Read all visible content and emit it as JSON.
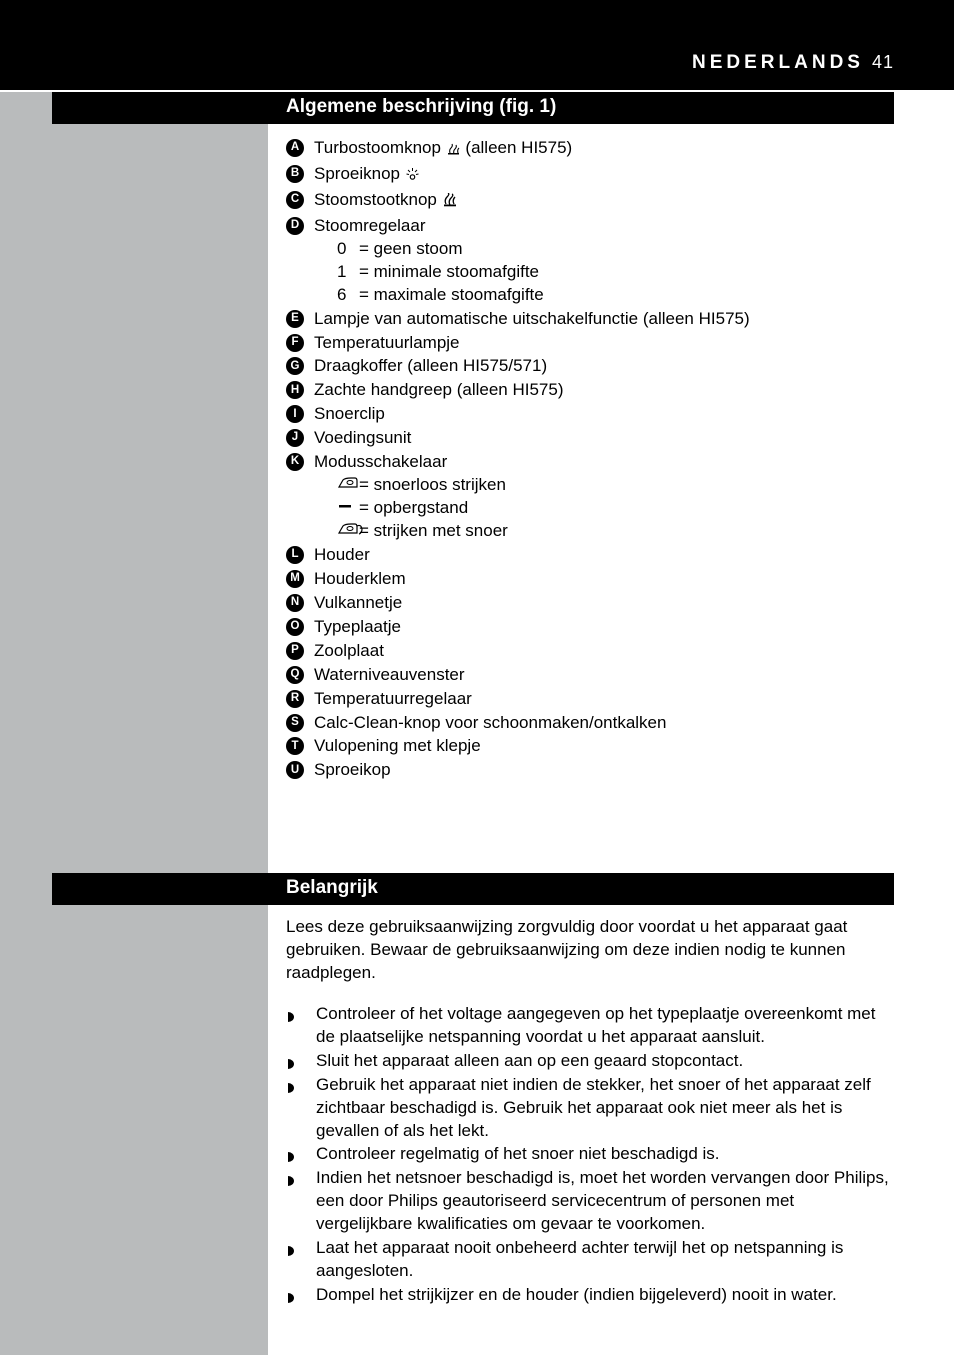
{
  "header": {
    "language": "NEDERLANDS",
    "page_number": "41"
  },
  "sections": {
    "s1_title": "Algemene beschrijving (fig. 1)",
    "s2_title": "Belangrijk"
  },
  "definitions": {
    "A": {
      "label": "Turbostoomknop",
      "suffix": "(alleen HI575)",
      "icon": "steam-small"
    },
    "B": {
      "label": "Sproeiknop",
      "icon": "spray"
    },
    "C": {
      "label": "Stoomstootknop",
      "icon": "steam-big"
    },
    "D": {
      "label": "Stoomregelaar",
      "subs": [
        {
          "k": "0",
          "t": "= geen stoom"
        },
        {
          "k": "1",
          "t": "= minimale stoomafgifte"
        },
        {
          "k": "6",
          "t": "= maximale stoomafgifte"
        }
      ]
    },
    "E": {
      "label": "Lampje van automatische uitschakelfunctie (alleen HI575)"
    },
    "F": {
      "label": "Temperatuurlampje"
    },
    "G": {
      "label": "Draagkoffer (alleen HI575/571)"
    },
    "H": {
      "label": "Zachte handgreep (alleen HI575)"
    },
    "I": {
      "label": "Snoerclip"
    },
    "J": {
      "label": "Voedingsunit"
    },
    "K": {
      "label": "Modusschakelaar",
      "subs": [
        {
          "icon": "iron-nocord",
          "t": "= snoerloos strijken"
        },
        {
          "icon": "dash",
          "t": "= opbergstand"
        },
        {
          "icon": "iron-cord",
          "t": "= strijken met snoer"
        }
      ]
    },
    "L": {
      "label": "Houder"
    },
    "M": {
      "label": "Houderklem"
    },
    "N": {
      "label": "Vulkannetje"
    },
    "O": {
      "label": "Typeplaatje"
    },
    "P": {
      "label": "Zoolplaat"
    },
    "Q": {
      "label": "Waterniveauvenster"
    },
    "R": {
      "label": "Temperatuurregelaar"
    },
    "S": {
      "label": "Calc-Clean-knop voor schoonmaken/ontkalken"
    },
    "T": {
      "label": "Vulopening met klepje"
    },
    "U": {
      "label": "Sproeikop"
    }
  },
  "intro_para": "Lees deze gebruiksaanwijzing zorgvuldig door voordat u het apparaat gaat gebruiken. Bewaar de gebruiksaanwijzing om deze indien nodig te kunnen raadplegen.",
  "bullets": [
    "Controleer of het voltage aangegeven op het typeplaatje overeenkomt met de plaatselijke netspanning voordat u het apparaat aansluit.",
    "Sluit het apparaat alleen aan op een geaard stopcontact.",
    "Gebruik het apparaat niet indien de stekker, het snoer of het apparaat zelf zichtbaar beschadigd is. Gebruik het apparaat ook niet meer als het is gevallen of als het lekt.",
    "Controleer regelmatig of het snoer niet beschadigd is.",
    "Indien het netsnoer beschadigd is, moet het worden vervangen door Philips, een door Philips geautoriseerd servicecentrum of personen met vergelijkbare kwalificaties om gevaar te voorkomen.",
    "Laat het apparaat nooit onbeheerd achter terwijl het op netspanning is aangesloten.",
    "Dompel het strijkijzer en de houder (indien bijgeleverd) nooit in water."
  ],
  "colors": {
    "black": "#000000",
    "gray": "#b9bbbc",
    "white": "#ffffff"
  }
}
